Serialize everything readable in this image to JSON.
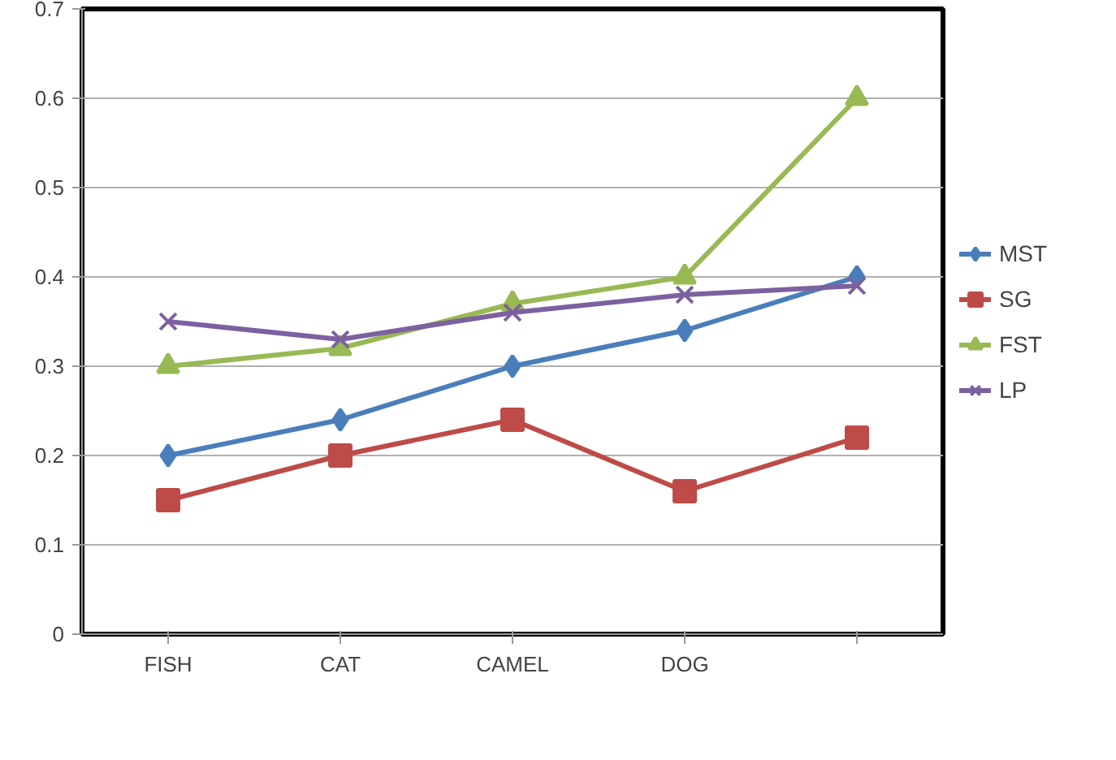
{
  "chart_data": {
    "type": "line",
    "categories": [
      "FISH",
      "CAT",
      "CAMEL",
      "DOG",
      null
    ],
    "ylim": [
      0,
      0.7
    ],
    "yticks": [
      0,
      0.1,
      0.2,
      0.3,
      0.4,
      0.5,
      0.6,
      0.7
    ],
    "grid": "y",
    "legend": "right",
    "line_style": "solid",
    "series": [
      {
        "name": "MST",
        "color": "#4a7ebb",
        "marker": "diamond",
        "values": [
          0.2,
          0.24,
          0.3,
          0.34,
          0.4
        ]
      },
      {
        "name": "SG",
        "color": "#be4b48",
        "marker": "square",
        "values": [
          0.15,
          0.2,
          0.24,
          0.16,
          0.22
        ]
      },
      {
        "name": "FST",
        "color": "#98b954",
        "marker": "triangle",
        "values": [
          0.3,
          0.32,
          0.37,
          0.4,
          0.6
        ]
      },
      {
        "name": "LP",
        "color": "#7d60a0",
        "marker": "cross",
        "values": [
          0.35,
          0.33,
          0.36,
          0.38,
          0.39
        ]
      }
    ]
  }
}
